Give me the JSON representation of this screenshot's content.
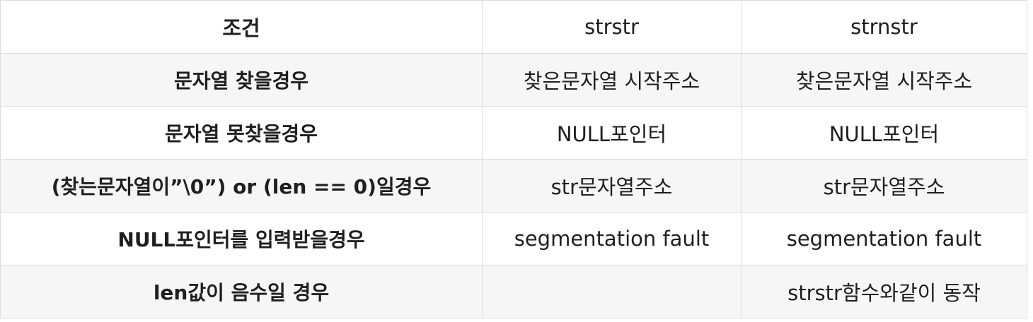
{
  "table": {
    "headers": [
      "조건",
      "strstr",
      "strnstr"
    ],
    "rows": [
      [
        "문자열 찾을경우",
        "찾은문자열 시작주소",
        "찾은문자열 시작주소"
      ],
      [
        "문자열 못찾을경우",
        "NULL포인터",
        "NULL포인터"
      ],
      [
        "(찾는문자열이”\\0”) or (len == 0)일경우",
        "str문자열주소",
        "str문자열주소"
      ],
      [
        "NULL포인터를 입력받을경우",
        "segmentation fault",
        "segmentation fault"
      ],
      [
        "len값이 음수일 경우",
        "",
        "strstr함수와같이 동작"
      ]
    ]
  }
}
